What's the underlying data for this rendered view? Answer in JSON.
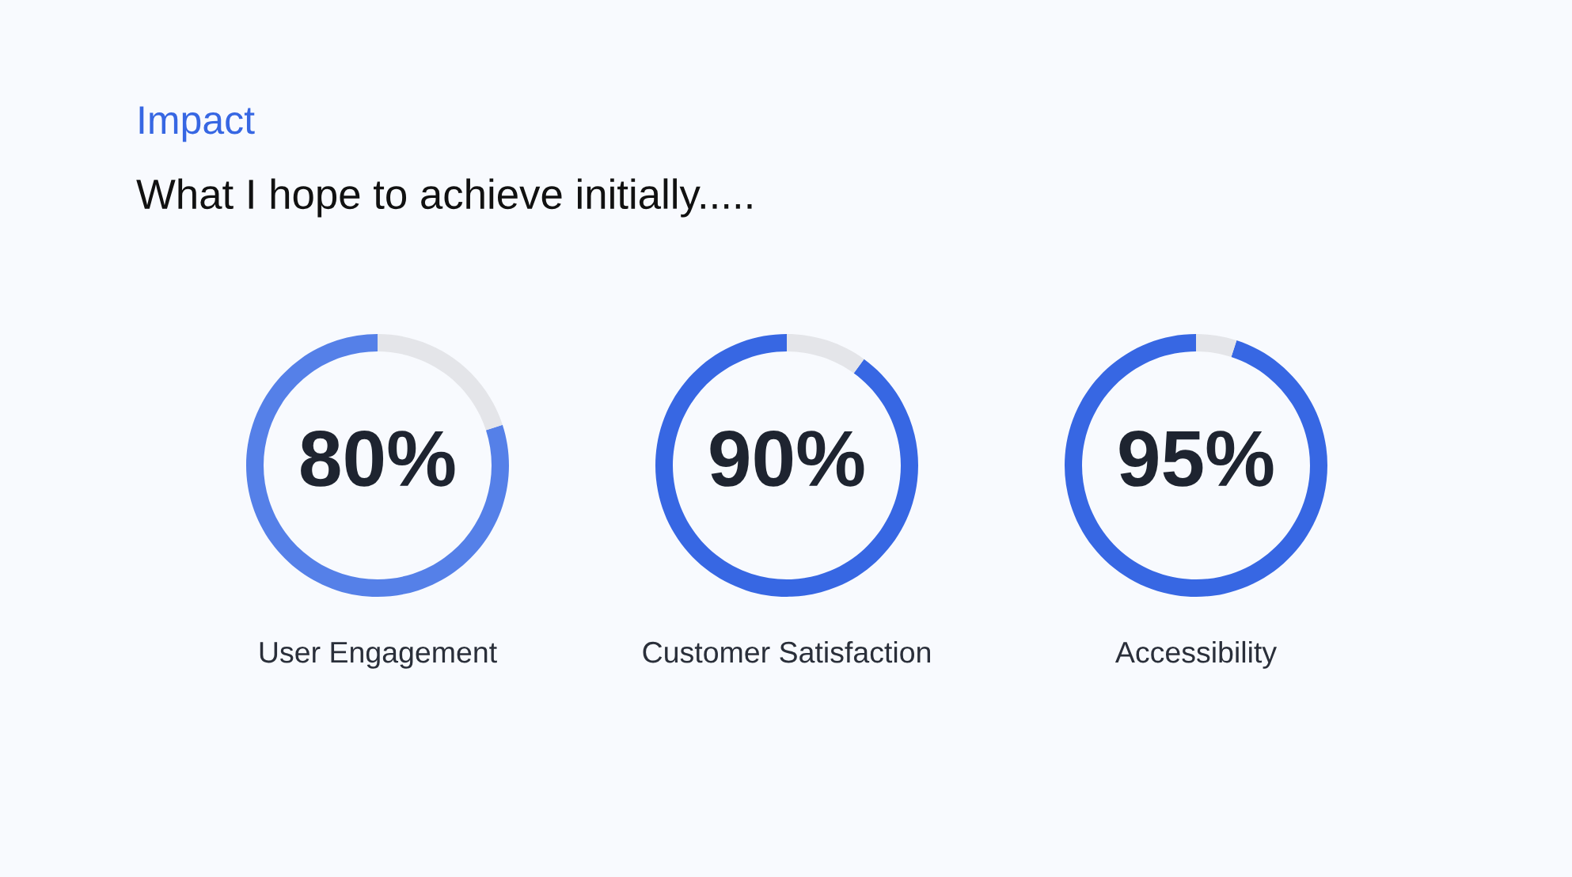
{
  "chart_data": [
    {
      "type": "other",
      "title": "Impact",
      "subtitle": "What I hope to achieve initially....."
    },
    {
      "type": "donut",
      "categories": [
        null,
        null
      ],
      "values": [
        80,
        20
      ],
      "colors": [
        "#5580e8",
        "#e4e5e9"
      ],
      "value_labels": [
        "80%",
        null
      ],
      "xlabel": "User Engagement"
    },
    {
      "type": "donut",
      "categories": [
        null,
        null
      ],
      "values": [
        90,
        10
      ],
      "colors": [
        "#3767e3",
        "#e4e5e9"
      ],
      "value_labels": [
        "90%",
        null
      ],
      "xlabel": "Customer Satisfaction"
    },
    {
      "type": "donut",
      "categories": [
        null,
        null
      ],
      "values": [
        95,
        5
      ],
      "colors": [
        "#3767e3",
        "#e4e5e9"
      ],
      "value_labels": [
        "95%",
        null
      ],
      "xlabel": "Accessibility"
    }
  ]
}
